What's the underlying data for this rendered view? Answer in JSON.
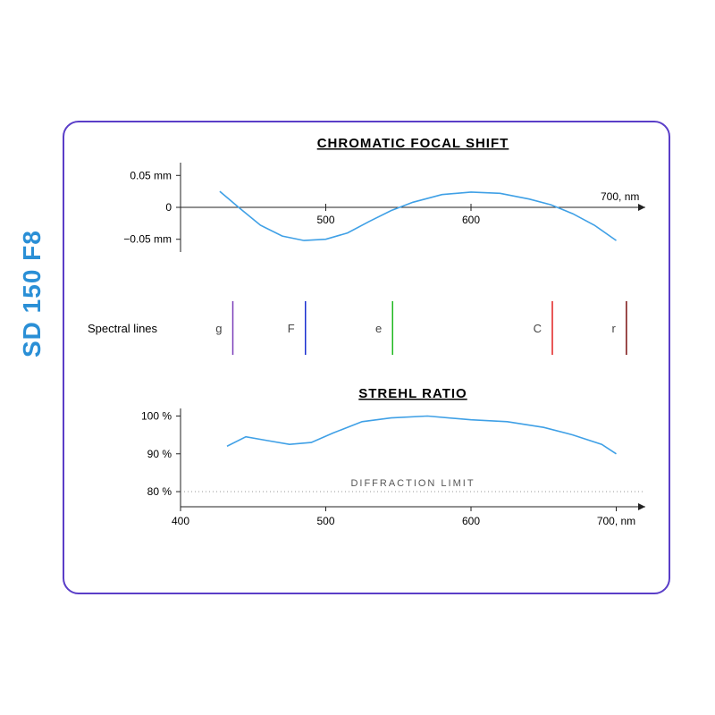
{
  "side_label": "SD 150 F8",
  "card": {
    "border_color": "#5a3ec8",
    "border_radius": 18,
    "background": "#ffffff"
  },
  "wavelength": {
    "min": 400,
    "max": 700,
    "unit_label": "nm",
    "ticks": [
      500,
      600,
      700
    ]
  },
  "focal_shift": {
    "title": "CHROMATIC FOCAL SHIFT",
    "title_fontsize": 15,
    "y_min": -0.07,
    "y_max": 0.07,
    "y_ticks": [
      {
        "v": 0.05,
        "label": "0.05 mm"
      },
      {
        "v": 0,
        "label": "0"
      },
      {
        "v": -0.05,
        "label": "−0.05 mm"
      }
    ],
    "x_ticks_show": [
      500,
      600
    ],
    "x_end_label": "700, nm",
    "curve_color": "#3fa0e6",
    "curve_width": 1.6,
    "points": [
      {
        "x": 427,
        "y": 0.025
      },
      {
        "x": 440,
        "y": 0.0
      },
      {
        "x": 455,
        "y": -0.028
      },
      {
        "x": 470,
        "y": -0.045
      },
      {
        "x": 485,
        "y": -0.052
      },
      {
        "x": 500,
        "y": -0.05
      },
      {
        "x": 515,
        "y": -0.04
      },
      {
        "x": 530,
        "y": -0.022
      },
      {
        "x": 545,
        "y": -0.005
      },
      {
        "x": 560,
        "y": 0.008
      },
      {
        "x": 580,
        "y": 0.02
      },
      {
        "x": 600,
        "y": 0.024
      },
      {
        "x": 620,
        "y": 0.022
      },
      {
        "x": 640,
        "y": 0.013
      },
      {
        "x": 655,
        "y": 0.004
      },
      {
        "x": 670,
        "y": -0.01
      },
      {
        "x": 685,
        "y": -0.028
      },
      {
        "x": 700,
        "y": -0.052
      }
    ]
  },
  "spectral_lines": {
    "label": "Spectral lines",
    "lines": [
      {
        "name": "g",
        "x": 436,
        "color": "#7a3db8"
      },
      {
        "name": "F",
        "x": 486,
        "color": "#1a2fd0"
      },
      {
        "name": "e",
        "x": 546,
        "color": "#1fb81f"
      },
      {
        "name": "C",
        "x": 656,
        "color": "#e02020"
      },
      {
        "name": "r",
        "x": 707,
        "color": "#7a1010"
      }
    ],
    "line_height": 60,
    "line_width": 1.5,
    "label_fontsize": 13
  },
  "strehl": {
    "title": "STREHL RATIO",
    "title_fontsize": 15,
    "y_min": 76,
    "y_max": 102,
    "y_ticks": [
      {
        "v": 100,
        "label": "100 %"
      },
      {
        "v": 90,
        "label": "90 %"
      },
      {
        "v": 80,
        "label": "80 %"
      }
    ],
    "diffraction_limit": {
      "y": 80,
      "label": "DIFFRACTION  LIMIT"
    },
    "curve_color": "#3fa0e6",
    "curve_width": 1.6,
    "points": [
      {
        "x": 432,
        "y": 92
      },
      {
        "x": 445,
        "y": 94.5
      },
      {
        "x": 460,
        "y": 93.5
      },
      {
        "x": 475,
        "y": 92.5
      },
      {
        "x": 490,
        "y": 93
      },
      {
        "x": 505,
        "y": 95.5
      },
      {
        "x": 525,
        "y": 98.5
      },
      {
        "x": 545,
        "y": 99.5
      },
      {
        "x": 570,
        "y": 100
      },
      {
        "x": 600,
        "y": 99
      },
      {
        "x": 625,
        "y": 98.5
      },
      {
        "x": 650,
        "y": 97
      },
      {
        "x": 670,
        "y": 95
      },
      {
        "x": 690,
        "y": 92.5
      },
      {
        "x": 700,
        "y": 90
      }
    ],
    "x_ticks": [
      400,
      500,
      600,
      700
    ],
    "x_end_label": "700, nm"
  },
  "colors": {
    "axis": "#222222",
    "text": "#222222",
    "side_label": "#2a8fd6"
  },
  "fonts": {
    "title_weight": 700,
    "label_size": 13
  }
}
